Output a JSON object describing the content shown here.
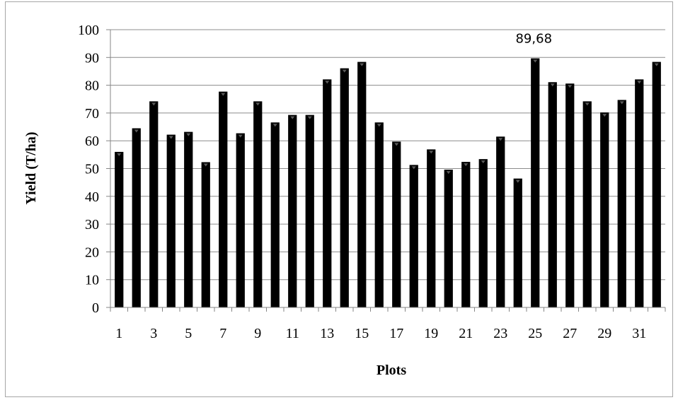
{
  "chart_data": {
    "type": "bar",
    "categories": [
      "1",
      "2",
      "3",
      "4",
      "5",
      "6",
      "7",
      "8",
      "9",
      "10",
      "11",
      "12",
      "13",
      "14",
      "15",
      "16",
      "17",
      "18",
      "19",
      "20",
      "21",
      "22",
      "23",
      "24",
      "25",
      "26",
      "27",
      "28",
      "29",
      "30",
      "31",
      "32"
    ],
    "x_tick_labels": [
      "1",
      "3",
      "5",
      "7",
      "9",
      "11",
      "13",
      "15",
      "17",
      "19",
      "21",
      "23",
      "25",
      "27",
      "29",
      "31"
    ],
    "values": [
      56,
      64.5,
      74.2,
      62.2,
      63.2,
      52.3,
      77.7,
      62.7,
      74.2,
      66.6,
      69.3,
      69.3,
      82.1,
      86.1,
      88.4,
      66.6,
      59.7,
      51.3,
      56.9,
      49.6,
      52.4,
      53.4,
      61.5,
      46.4,
      89.68,
      81.1,
      80.6,
      74.2,
      70.2,
      74.7,
      82.1,
      88.4
    ],
    "data_labels": [
      {
        "index": 24,
        "text": "89,68"
      }
    ],
    "xlabel": "Plots",
    "ylabel": "Yield (T/ha)",
    "ylim": [
      0,
      100
    ],
    "yticks": [
      0,
      10,
      20,
      30,
      40,
      50,
      60,
      70,
      80,
      90,
      100
    ],
    "grid": "horizontal",
    "legend": "none",
    "bar_color": "#000000",
    "grid_color": "#8c8c8c"
  }
}
